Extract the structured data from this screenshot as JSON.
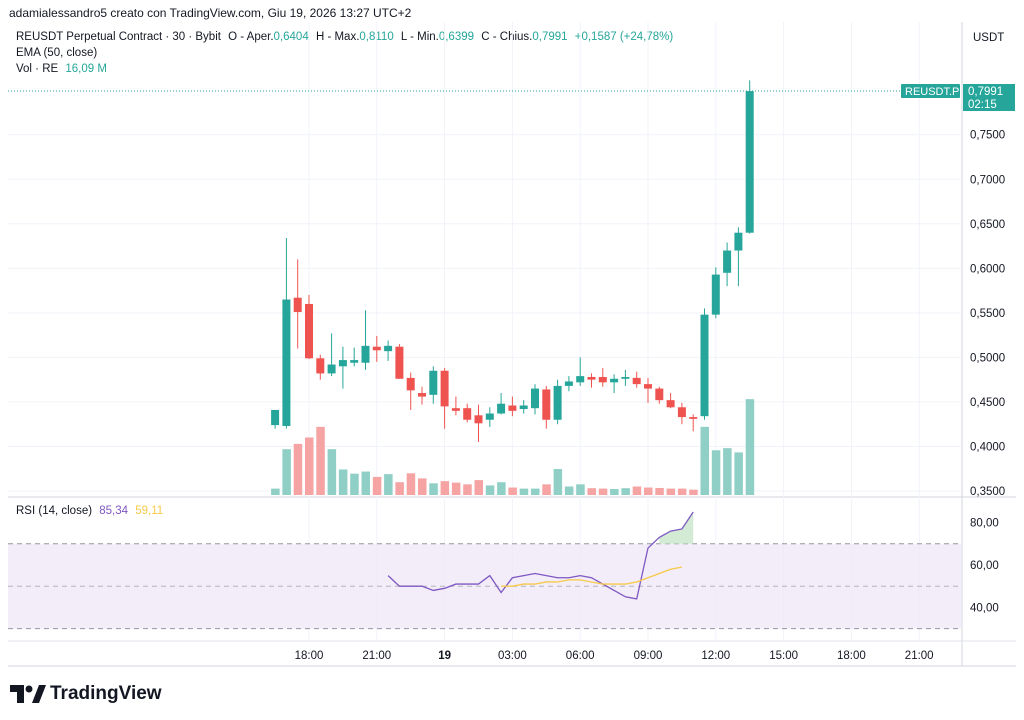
{
  "header": {
    "author_line": "adamialessandro5 creato con TradingView.com, Giu 19, 2026 13:27 UTC+2",
    "symbol_line": "REUSDT Perpetual Contract · 30 · Bybit",
    "open_label": "O - Aper.",
    "open_value": "0,6404",
    "high_label": "H - Max.",
    "high_value": "0,8110",
    "low_label": "L - Min.",
    "low_value": "0,6399",
    "close_label": "C - Chius.",
    "close_value": "0,7991",
    "change_value": "+0,1587 (+24,78%)",
    "ema_label": "EMA (50, close)",
    "vol_label": "Vol · RE",
    "vol_value": "16,09 M",
    "currency": "USDT"
  },
  "rsi_legend": {
    "label": "RSI (14, close)",
    "value": "85,34",
    "ma_value": "59,11"
  },
  "footer": {
    "brand": "TradingView"
  },
  "colors": {
    "up": "#26a69a",
    "down": "#ef5350",
    "vol_up": "#8fcfc6",
    "vol_down": "#f5a3a3",
    "rsi": "#7e57c2",
    "rsi_ma": "#f7c948",
    "band": "#ede7f6"
  },
  "chart_data": {
    "type": "candlestick",
    "symbol": "REUSDT",
    "price_axis": {
      "ticks": [
        "0,7500",
        "0,7000",
        "0,6500",
        "0,6000",
        "0,5500",
        "0,5000",
        "0,4500",
        "0,4000",
        "0,3500"
      ],
      "tick_values": [
        0.75,
        0.7,
        0.65,
        0.6,
        0.55,
        0.5,
        0.45,
        0.4,
        0.35
      ]
    },
    "last_price": {
      "label": "REUSDT.P",
      "value": "0,7991",
      "countdown": "02:15"
    },
    "time_axis": {
      "labels": [
        "18:00",
        "21:00",
        "19",
        "03:00",
        "06:00",
        "09:00",
        "12:00",
        "15:00",
        "18:00",
        "21:00"
      ],
      "hours": [
        18,
        21,
        24,
        27,
        30,
        33,
        36,
        39,
        42,
        45
      ]
    },
    "candles_start_hour": 16.5,
    "candles": [
      {
        "o": 0.424,
        "h": 0.441,
        "l": 0.42,
        "c": 0.441,
        "v": 0.03
      },
      {
        "o": 0.423,
        "h": 0.634,
        "l": 0.42,
        "c": 0.565,
        "v": 0.215
      },
      {
        "o": 0.567,
        "h": 0.61,
        "l": 0.51,
        "c": 0.551,
        "v": 0.24
      },
      {
        "o": 0.56,
        "h": 0.57,
        "l": 0.498,
        "c": 0.499,
        "v": 0.27
      },
      {
        "o": 0.499,
        "h": 0.503,
        "l": 0.475,
        "c": 0.482,
        "v": 0.32
      },
      {
        "o": 0.482,
        "h": 0.527,
        "l": 0.479,
        "c": 0.492,
        "v": 0.215
      },
      {
        "o": 0.49,
        "h": 0.512,
        "l": 0.465,
        "c": 0.497,
        "v": 0.12
      },
      {
        "o": 0.494,
        "h": 0.511,
        "l": 0.49,
        "c": 0.497,
        "v": 0.1
      },
      {
        "o": 0.494,
        "h": 0.553,
        "l": 0.486,
        "c": 0.513,
        "v": 0.11
      },
      {
        "o": 0.512,
        "h": 0.524,
        "l": 0.495,
        "c": 0.508,
        "v": 0.085
      },
      {
        "o": 0.507,
        "h": 0.519,
        "l": 0.496,
        "c": 0.513,
        "v": 0.098
      },
      {
        "o": 0.512,
        "h": 0.515,
        "l": 0.476,
        "c": 0.476,
        "v": 0.06
      },
      {
        "o": 0.477,
        "h": 0.483,
        "l": 0.441,
        "c": 0.463,
        "v": 0.102
      },
      {
        "o": 0.46,
        "h": 0.467,
        "l": 0.447,
        "c": 0.456,
        "v": 0.078
      },
      {
        "o": 0.458,
        "h": 0.49,
        "l": 0.448,
        "c": 0.485,
        "v": 0.055
      },
      {
        "o": 0.485,
        "h": 0.488,
        "l": 0.42,
        "c": 0.445,
        "v": 0.065
      },
      {
        "o": 0.443,
        "h": 0.456,
        "l": 0.435,
        "c": 0.44,
        "v": 0.058
      },
      {
        "o": 0.443,
        "h": 0.448,
        "l": 0.427,
        "c": 0.43,
        "v": 0.05
      },
      {
        "o": 0.435,
        "h": 0.447,
        "l": 0.405,
        "c": 0.426,
        "v": 0.07
      },
      {
        "o": 0.43,
        "h": 0.444,
        "l": 0.422,
        "c": 0.437,
        "v": 0.045
      },
      {
        "o": 0.437,
        "h": 0.46,
        "l": 0.436,
        "c": 0.448,
        "v": 0.06
      },
      {
        "o": 0.446,
        "h": 0.456,
        "l": 0.434,
        "c": 0.44,
        "v": 0.035
      },
      {
        "o": 0.442,
        "h": 0.452,
        "l": 0.437,
        "c": 0.446,
        "v": 0.03
      },
      {
        "o": 0.443,
        "h": 0.47,
        "l": 0.436,
        "c": 0.465,
        "v": 0.03
      },
      {
        "o": 0.464,
        "h": 0.468,
        "l": 0.42,
        "c": 0.43,
        "v": 0.05
      },
      {
        "o": 0.43,
        "h": 0.475,
        "l": 0.425,
        "c": 0.468,
        "v": 0.122
      },
      {
        "o": 0.468,
        "h": 0.479,
        "l": 0.462,
        "c": 0.473,
        "v": 0.04
      },
      {
        "o": 0.472,
        "h": 0.5,
        "l": 0.468,
        "c": 0.479,
        "v": 0.05
      },
      {
        "o": 0.478,
        "h": 0.482,
        "l": 0.466,
        "c": 0.475,
        "v": 0.032
      },
      {
        "o": 0.478,
        "h": 0.488,
        "l": 0.467,
        "c": 0.472,
        "v": 0.03
      },
      {
        "o": 0.472,
        "h": 0.481,
        "l": 0.46,
        "c": 0.476,
        "v": 0.028
      },
      {
        "o": 0.476,
        "h": 0.486,
        "l": 0.468,
        "c": 0.478,
        "v": 0.032
      },
      {
        "o": 0.477,
        "h": 0.484,
        "l": 0.466,
        "c": 0.47,
        "v": 0.04
      },
      {
        "o": 0.47,
        "h": 0.477,
        "l": 0.449,
        "c": 0.465,
        "v": 0.035
      },
      {
        "o": 0.465,
        "h": 0.467,
        "l": 0.448,
        "c": 0.452,
        "v": 0.033
      },
      {
        "o": 0.452,
        "h": 0.46,
        "l": 0.443,
        "c": 0.444,
        "v": 0.03
      },
      {
        "o": 0.444,
        "h": 0.449,
        "l": 0.425,
        "c": 0.433,
        "v": 0.03
      },
      {
        "o": 0.433,
        "h": 0.436,
        "l": 0.417,
        "c": 0.431,
        "v": 0.025
      },
      {
        "o": 0.434,
        "h": 0.555,
        "l": 0.43,
        "c": 0.548,
        "v": 0.32
      },
      {
        "o": 0.548,
        "h": 0.601,
        "l": 0.544,
        "c": 0.593,
        "v": 0.21
      },
      {
        "o": 0.595,
        "h": 0.629,
        "l": 0.58,
        "c": 0.62,
        "v": 0.22
      },
      {
        "o": 0.62,
        "h": 0.646,
        "l": 0.58,
        "c": 0.64,
        "v": 0.2
      },
      {
        "o": 0.64,
        "h": 0.811,
        "l": 0.639,
        "c": 0.799,
        "v": 0.45
      }
    ],
    "rsi": {
      "axis_ticks": [
        "80,00",
        "60,00",
        "40,00"
      ],
      "axis_values": [
        80,
        60,
        40
      ],
      "upper_band": 70,
      "lower_band": 30,
      "middle": 50,
      "start_index": 10,
      "values": [
        55,
        50,
        50,
        50,
        48,
        49,
        51,
        51,
        51,
        55,
        47,
        54,
        55,
        56,
        55,
        54,
        54,
        55,
        54,
        51,
        48,
        45,
        44,
        68,
        73,
        76,
        77,
        85
      ],
      "ma_start_index": 20,
      "ma_values": [
        50,
        50,
        51,
        51,
        52,
        52,
        53,
        53,
        52,
        51,
        51,
        51,
        52,
        54,
        56,
        58,
        59
      ]
    }
  }
}
